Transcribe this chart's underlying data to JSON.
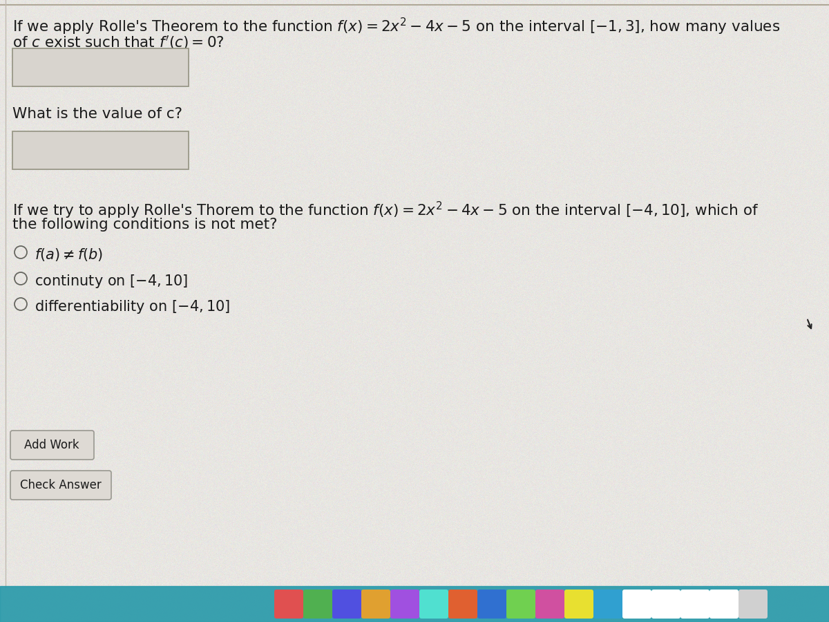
{
  "page_bg": "#e8e6e2",
  "text_color": "#1a1a1a",
  "q1_line1": "If we apply Rolle's Theorem to the function $f(x) = 2x^2 - 4x - 5$ on the interval $[-1, 3]$, how many values",
  "q1_line2": "of $c$ exist such that $f'(c) = 0$?",
  "q2": "What is the value of c?",
  "q3_line1": "If we try to apply Rolle's Thorem to the function $f(x) = 2x^2 - 4x - 5$ on the interval $[-4, 10]$, which of",
  "q3_line2": "the following conditions is not met?",
  "option1": "$f(a) \\neq f(b)$",
  "option2": "continuty on $[-4, 10]$",
  "option3": "differentiability on $[-4, 10]$",
  "btn1": "Add Work",
  "btn2": "Check Answer",
  "input_box_color": "#d8d4ce",
  "input_border_color": "#999888",
  "font_size_main": 15.5,
  "font_size_option": 15,
  "top_border_color": "#b0a898",
  "dock_bg": "#2a9aaa",
  "dock_colors": [
    "#e05050",
    "#50b050",
    "#5050e0",
    "#e0a030",
    "#a050e0",
    "#50e0d0",
    "#e06030",
    "#3070d0",
    "#70d050",
    "#d050a0",
    "#e8e030",
    "#30a0d0",
    "#ffffff",
    "#ffffff",
    "#ffffff",
    "#ffffff",
    "#d0d0d0"
  ]
}
